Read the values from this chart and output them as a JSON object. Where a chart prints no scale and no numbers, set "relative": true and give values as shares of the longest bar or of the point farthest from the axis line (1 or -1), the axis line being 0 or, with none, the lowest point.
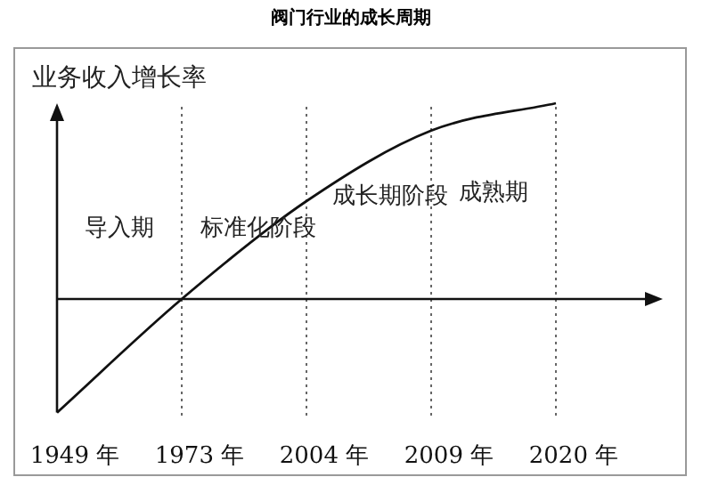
{
  "chart_data": {
    "type": "line",
    "title": "阀门行业的成长周期",
    "ylabel": "业务收入增长率",
    "relative": true,
    "categories": [
      "1949 年",
      "1973 年",
      "2004 年",
      "2009 年",
      "2020 年"
    ],
    "values": [
      -0.58,
      0,
      0.5,
      0.86,
      1
    ],
    "color": "#111111",
    "line_style": "solid",
    "ref_lines": [
      {
        "axis": "x",
        "value": "1973 年",
        "line_style": "dotted",
        "color": "#666666"
      },
      {
        "axis": "x",
        "value": "2004 年",
        "line_style": "dotted",
        "color": "#666666"
      },
      {
        "axis": "x",
        "value": "2009 年",
        "line_style": "dotted",
        "color": "#666666"
      },
      {
        "axis": "x",
        "value": "2020 年",
        "line_style": "dotted",
        "color": "#666666"
      }
    ],
    "annotations": [
      "导入期",
      "标准化阶段",
      "成长期阶段",
      "成熟期"
    ]
  }
}
